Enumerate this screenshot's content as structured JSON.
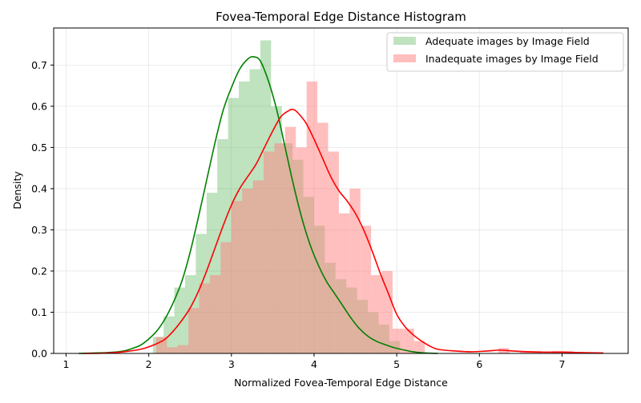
{
  "chart_data": {
    "type": "bar",
    "title": "Fovea-Temporal Edge Distance Histogram",
    "xlabel": "Normalized Fovea-Temporal Edge Distance",
    "ylabel": "Density",
    "xlim": [
      0.85,
      7.8
    ],
    "ylim": [
      0,
      0.79
    ],
    "grid": true,
    "legend_position": "top-right",
    "x_ticks": [
      1,
      2,
      3,
      4,
      5,
      6,
      7
    ],
    "y_ticks": [
      0.0,
      0.1,
      0.2,
      0.3,
      0.4,
      0.5,
      0.6,
      0.7
    ],
    "bin_width": 0.13,
    "series": [
      {
        "name": "Adequate images by Image Field",
        "color": "#2ca02c",
        "kde_color": "#008000",
        "bin_starts": [
          2.05,
          2.18,
          2.31,
          2.44,
          2.57,
          2.7,
          2.83,
          2.96,
          3.09,
          3.22,
          3.35,
          3.48,
          3.61,
          3.74,
          3.87,
          4.0,
          4.13,
          4.26,
          4.39,
          4.52,
          4.65,
          4.78,
          4.91
        ],
        "values": [
          0.04,
          0.09,
          0.16,
          0.19,
          0.29,
          0.39,
          0.52,
          0.62,
          0.66,
          0.69,
          0.76,
          0.6,
          0.51,
          0.47,
          0.38,
          0.31,
          0.22,
          0.18,
          0.16,
          0.13,
          0.1,
          0.07,
          0.03
        ],
        "kde_x": [
          1.15,
          1.5,
          1.7,
          1.8,
          1.9,
          2.0,
          2.1,
          2.2,
          2.3,
          2.4,
          2.5,
          2.6,
          2.7,
          2.8,
          2.9,
          3.0,
          3.1,
          3.2,
          3.27,
          3.35,
          3.45,
          3.55,
          3.65,
          3.75,
          3.85,
          3.95,
          4.05,
          4.15,
          4.25,
          4.35,
          4.45,
          4.55,
          4.65,
          4.75,
          4.85,
          4.95,
          5.05,
          5.2,
          5.35,
          5.5
        ],
        "kde_y": [
          0.0,
          0.002,
          0.006,
          0.012,
          0.02,
          0.035,
          0.055,
          0.085,
          0.125,
          0.175,
          0.245,
          0.33,
          0.42,
          0.51,
          0.59,
          0.645,
          0.69,
          0.715,
          0.72,
          0.71,
          0.66,
          0.59,
          0.5,
          0.41,
          0.33,
          0.265,
          0.215,
          0.175,
          0.145,
          0.115,
          0.085,
          0.06,
          0.042,
          0.03,
          0.022,
          0.015,
          0.01,
          0.004,
          0.001,
          0.0
        ]
      },
      {
        "name": "Inadequate images by Image Field",
        "color": "#ff7f7f",
        "kde_color": "#ff0000",
        "bin_starts": [
          2.09,
          2.22,
          2.35,
          2.48,
          2.61,
          2.74,
          2.87,
          3.0,
          3.13,
          3.26,
          3.39,
          3.52,
          3.65,
          3.78,
          3.91,
          4.04,
          4.17,
          4.3,
          4.43,
          4.56,
          4.69,
          4.82,
          4.95,
          5.08,
          5.21
        ],
        "values": [
          0.04,
          0.015,
          0.02,
          0.11,
          0.17,
          0.19,
          0.27,
          0.37,
          0.4,
          0.42,
          0.49,
          0.51,
          0.55,
          0.5,
          0.66,
          0.56,
          0.49,
          0.34,
          0.4,
          0.31,
          0.19,
          0.2,
          0.06,
          0.06,
          0.03
        ],
        "extra_bins": [
          {
            "start": 6.23,
            "value": 0.013
          },
          {
            "start": 6.49,
            "value": 0.006
          },
          {
            "start": 6.62,
            "value": 0.006
          },
          {
            "start": 6.88,
            "value": 0.006
          },
          {
            "start": 7.01,
            "value": 0.006
          }
        ],
        "kde_x": [
          1.2,
          1.5,
          1.7,
          1.9,
          2.0,
          2.1,
          2.2,
          2.3,
          2.4,
          2.5,
          2.6,
          2.7,
          2.8,
          2.9,
          3.0,
          3.1,
          3.2,
          3.3,
          3.4,
          3.5,
          3.6,
          3.7,
          3.75,
          3.8,
          3.9,
          4.0,
          4.1,
          4.2,
          4.3,
          4.4,
          4.5,
          4.6,
          4.7,
          4.8,
          4.9,
          5.0,
          5.1,
          5.2,
          5.3,
          5.4,
          5.5,
          5.7,
          5.9,
          6.1,
          6.25,
          6.4,
          6.6,
          6.8,
          7.0,
          7.2,
          7.5
        ],
        "kde_y": [
          0.0,
          0.001,
          0.004,
          0.01,
          0.016,
          0.024,
          0.035,
          0.055,
          0.08,
          0.11,
          0.15,
          0.2,
          0.255,
          0.31,
          0.36,
          0.4,
          0.43,
          0.46,
          0.5,
          0.54,
          0.575,
          0.59,
          0.592,
          0.585,
          0.56,
          0.52,
          0.475,
          0.43,
          0.395,
          0.37,
          0.34,
          0.3,
          0.25,
          0.195,
          0.145,
          0.095,
          0.065,
          0.045,
          0.03,
          0.018,
          0.01,
          0.006,
          0.004,
          0.006,
          0.008,
          0.006,
          0.004,
          0.003,
          0.003,
          0.002,
          0.001
        ]
      }
    ]
  }
}
